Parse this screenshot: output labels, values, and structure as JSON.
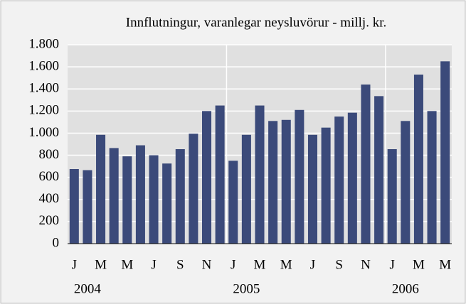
{
  "chart_data": {
    "type": "bar",
    "title": "Innflutningur, varanlegar neysluvörur - millj. kr.",
    "categories": [
      "J",
      null,
      "M",
      null,
      "M",
      null,
      "J",
      null,
      "S",
      null,
      "N",
      null,
      "J",
      null,
      "M",
      null,
      "M",
      null,
      "J",
      null,
      "S",
      null,
      "N",
      null,
      "J",
      null,
      "M",
      null,
      "M"
    ],
    "values": [
      675,
      665,
      985,
      865,
      790,
      890,
      800,
      725,
      855,
      995,
      1200,
      1250,
      750,
      985,
      1250,
      1110,
      1120,
      1210,
      985,
      1050,
      1150,
      1185,
      1440,
      1335,
      855,
      1110,
      1530,
      1200,
      1650
    ],
    "years": [
      "2004",
      "2005",
      "2006"
    ],
    "color": "#3b4a7a",
    "ylim": [
      0,
      1800
    ],
    "yticks": [
      0,
      200,
      400,
      600,
      800,
      {
        "value": 1000,
        "label": "1.000"
      },
      {
        "value": 1200,
        "label": "1.200"
      },
      {
        "value": 1400,
        "label": "1.400"
      },
      {
        "value": 1600,
        "label": "1.600"
      },
      {
        "value": 1800,
        "label": "1.800"
      }
    ],
    "grid": true
  }
}
